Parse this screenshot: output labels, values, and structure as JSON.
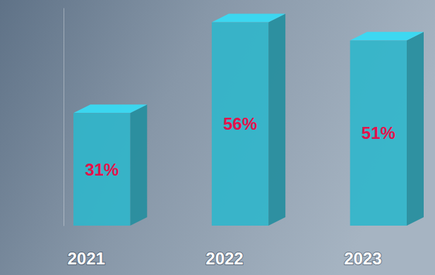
{
  "chart_data": {
    "type": "bar",
    "categories": [
      "2021",
      "2022",
      "2023"
    ],
    "values": [
      31,
      56,
      51
    ],
    "value_labels": [
      "31%",
      "56%",
      "51%"
    ],
    "color": "#2fb6cb",
    "ylim": [
      0,
      60
    ],
    "data_labels": true,
    "tick_labels": "x"
  }
}
